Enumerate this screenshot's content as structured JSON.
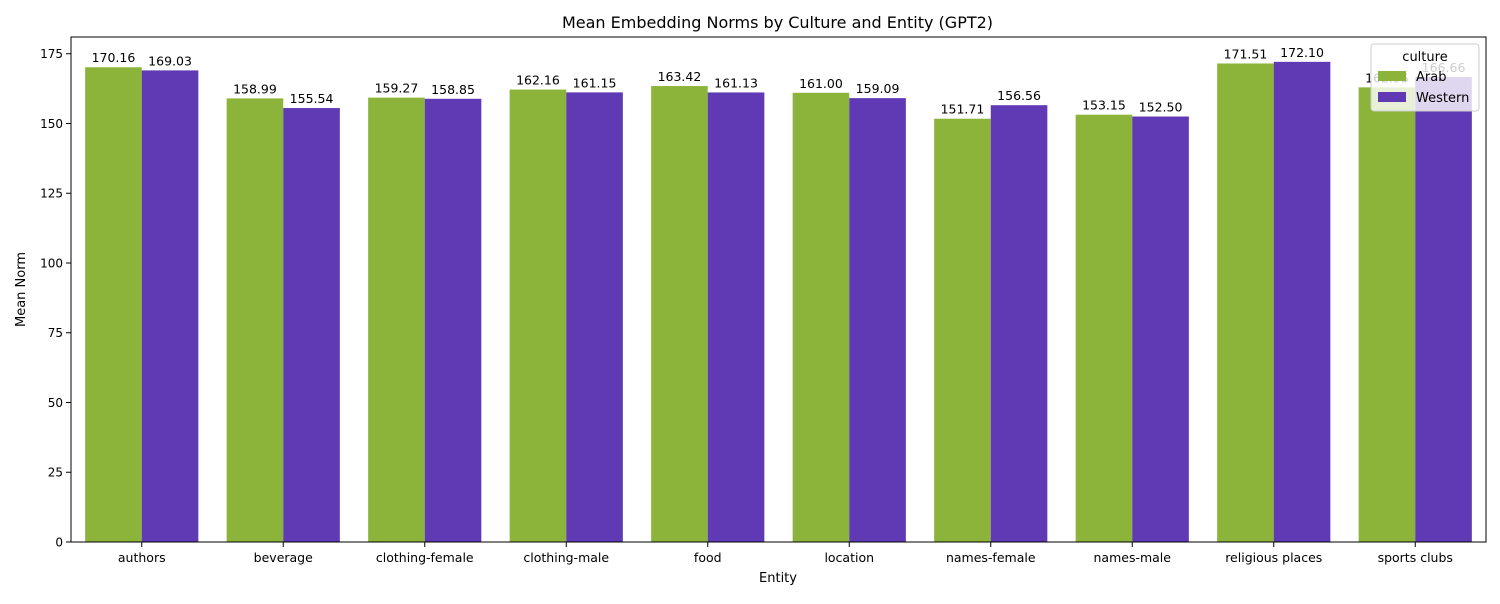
{
  "chart_data": {
    "type": "bar",
    "title": "Mean Embedding Norms by Culture and Entity (GPT2)",
    "xlabel": "Entity",
    "ylabel": "Mean Norm",
    "ylim": [
      0,
      181
    ],
    "yticks": [
      0,
      25,
      50,
      75,
      100,
      125,
      150,
      175
    ],
    "categories": [
      "authors",
      "beverage",
      "clothing-female",
      "clothing-male",
      "food",
      "location",
      "names-female",
      "names-male",
      "religious places",
      "sports clubs"
    ],
    "series": [
      {
        "name": "Arab",
        "color": "#8cb43a",
        "values": [
          170.16,
          158.99,
          159.27,
          162.16,
          163.42,
          161.0,
          151.71,
          153.15,
          171.51,
          162.95
        ],
        "labels": [
          "170.16",
          "158.99",
          "159.27",
          "162.16",
          "163.42",
          "161.00",
          "151.71",
          "153.15",
          "171.51",
          "162.95"
        ]
      },
      {
        "name": "Western",
        "color": "#6039b5",
        "values": [
          169.03,
          155.54,
          158.85,
          161.15,
          161.13,
          159.09,
          156.56,
          152.5,
          172.1,
          166.66
        ],
        "labels": [
          "169.03",
          "155.54",
          "158.85",
          "161.15",
          "161.13",
          "159.09",
          "156.56",
          "152.50",
          "172.10",
          "166.66"
        ]
      }
    ],
    "legend": {
      "title": "culture",
      "placement": "top-right"
    },
    "grid": false
  }
}
